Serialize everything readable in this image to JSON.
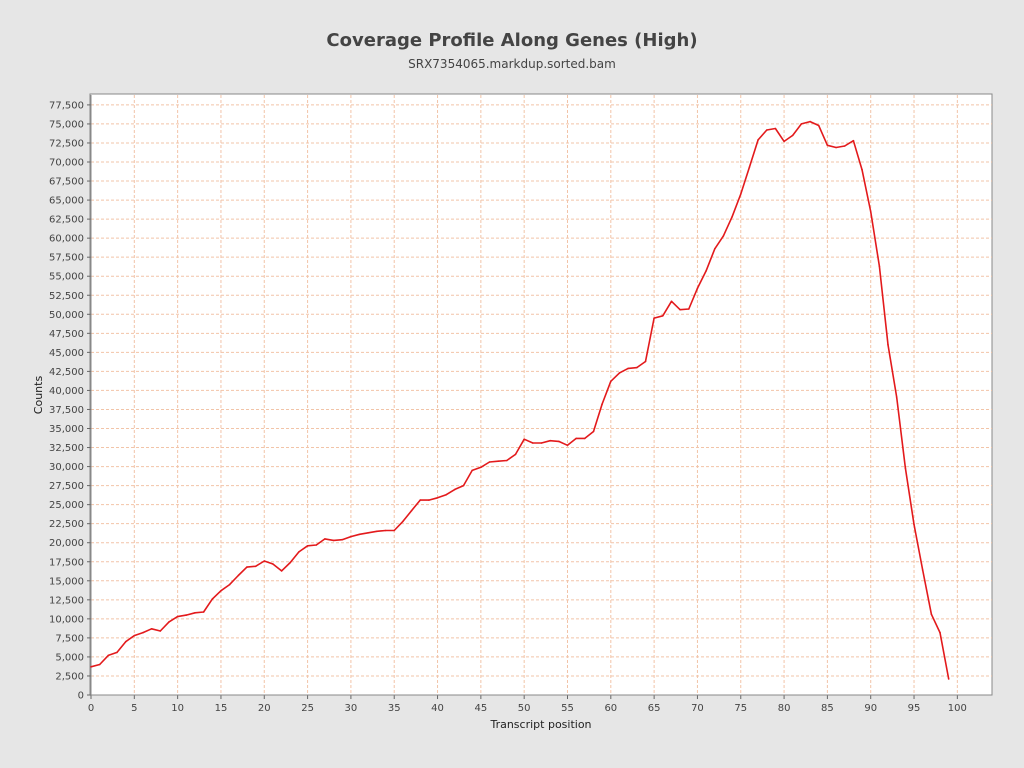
{
  "chart_data": {
    "type": "line",
    "title": "Coverage Profile Along Genes (High)",
    "subtitle": "SRX7354065.markdup.sorted.bam",
    "xlabel": "Transcript position",
    "ylabel": "Counts",
    "xlim": [
      0,
      104
    ],
    "ylim": [
      0,
      78800
    ],
    "x_ticks": [
      0,
      5,
      10,
      15,
      20,
      25,
      30,
      35,
      40,
      45,
      50,
      55,
      60,
      65,
      70,
      75,
      80,
      85,
      90,
      95,
      100
    ],
    "x_tick_labels": [
      "0",
      "5",
      "10",
      "15",
      "20",
      "25",
      "30",
      "35",
      "40",
      "45",
      "50",
      "55",
      "60",
      "65",
      "70",
      "75",
      "80",
      "85",
      "90",
      "95",
      "100"
    ],
    "y_ticks": [
      0,
      2500,
      5000,
      7500,
      10000,
      12500,
      15000,
      17500,
      20000,
      22500,
      25000,
      27500,
      30000,
      32500,
      35000,
      37500,
      40000,
      42500,
      45000,
      47500,
      50000,
      52500,
      55000,
      57500,
      60000,
      62500,
      65000,
      67500,
      70000,
      72500,
      75000,
      77500
    ],
    "y_tick_labels": [
      "0",
      "2,500",
      "5,000",
      "7,500",
      "10,000",
      "12,500",
      "15,000",
      "17,500",
      "20,000",
      "22,500",
      "25,000",
      "27,500",
      "30,000",
      "32,500",
      "35,000",
      "37,500",
      "40,000",
      "42,500",
      "45,000",
      "47,500",
      "50,000",
      "52,500",
      "55,000",
      "57,500",
      "60,000",
      "62,500",
      "65,000",
      "67,500",
      "70,000",
      "72,500",
      "75,000",
      "77,500"
    ],
    "grid": true,
    "series": [
      {
        "color": "#e31a1c",
        "x": [
          0,
          1,
          2,
          3,
          4,
          5,
          6,
          7,
          8,
          9,
          10,
          11,
          12,
          13,
          14,
          15,
          16,
          17,
          18,
          19,
          20,
          21,
          22,
          23,
          24,
          25,
          26,
          27,
          28,
          29,
          30,
          31,
          32,
          33,
          34,
          35,
          36,
          37,
          38,
          39,
          40,
          41,
          42,
          43,
          44,
          45,
          46,
          47,
          48,
          49,
          50,
          51,
          52,
          53,
          54,
          55,
          56,
          57,
          58,
          59,
          60,
          61,
          62,
          63,
          64,
          65,
          66,
          67,
          68,
          69,
          70,
          71,
          72,
          73,
          74,
          75,
          76,
          77,
          78,
          79,
          80,
          81,
          82,
          83,
          84,
          85,
          86,
          87,
          88,
          89,
          90,
          91,
          92,
          93,
          94,
          95,
          96,
          97,
          98,
          99
        ],
        "y": [
          3700,
          4000,
          5200,
          5600,
          7000,
          7800,
          8200,
          8700,
          8400,
          9600,
          10300,
          10500,
          10800,
          10900,
          12600,
          13700,
          14500,
          15700,
          16800,
          16900,
          17600,
          17200,
          16300,
          17400,
          18800,
          19600,
          19700,
          20500,
          20300,
          20400,
          20800,
          21100,
          21300,
          21500,
          21600,
          21600,
          22800,
          24200,
          25600,
          25600,
          25900,
          26300,
          27000,
          27500,
          29500,
          29900,
          30600,
          30700,
          30800,
          31600,
          33600,
          33100,
          33100,
          33400,
          33300,
          32800,
          33700,
          33700,
          34600,
          38200,
          41200,
          42300,
          42900,
          43000,
          43800,
          49500,
          49800,
          51700,
          50600,
          50700,
          53400,
          55700,
          58600,
          60300,
          62800,
          65800,
          69300,
          72900,
          74200,
          74400,
          72700,
          73500,
          75000,
          75300,
          74800,
          72200,
          71900,
          72100,
          72800,
          69000,
          63500,
          56300,
          46000,
          39100,
          29800,
          22400,
          16400,
          10600,
          8200,
          2100
        ]
      }
    ]
  }
}
